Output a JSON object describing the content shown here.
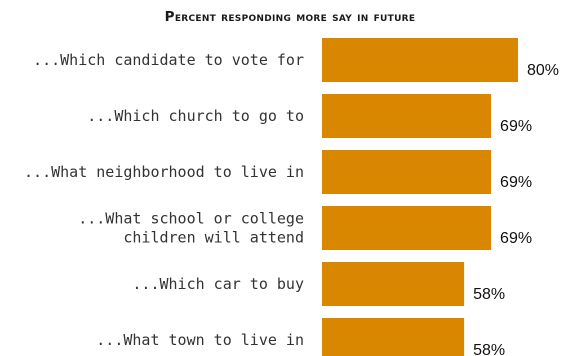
{
  "chart_data": {
    "type": "bar",
    "orientation": "horizontal",
    "title": "Percent responding more say in future",
    "categories": [
      [
        "...Which candidate to vote for"
      ],
      [
        "...Which church to go to"
      ],
      [
        "...What neighborhood to live in"
      ],
      [
        "...What school or college",
        "children will attend"
      ],
      [
        "...Which car to buy"
      ],
      [
        "...What town to live in"
      ]
    ],
    "values": [
      80,
      69,
      69,
      69,
      58,
      58
    ],
    "value_labels": [
      "80%",
      "69%",
      "69%",
      "69%",
      "58%",
      "58%"
    ],
    "xlim": [
      0,
      100
    ],
    "grid": false,
    "legend": "none",
    "bar_color": "#d98700"
  }
}
